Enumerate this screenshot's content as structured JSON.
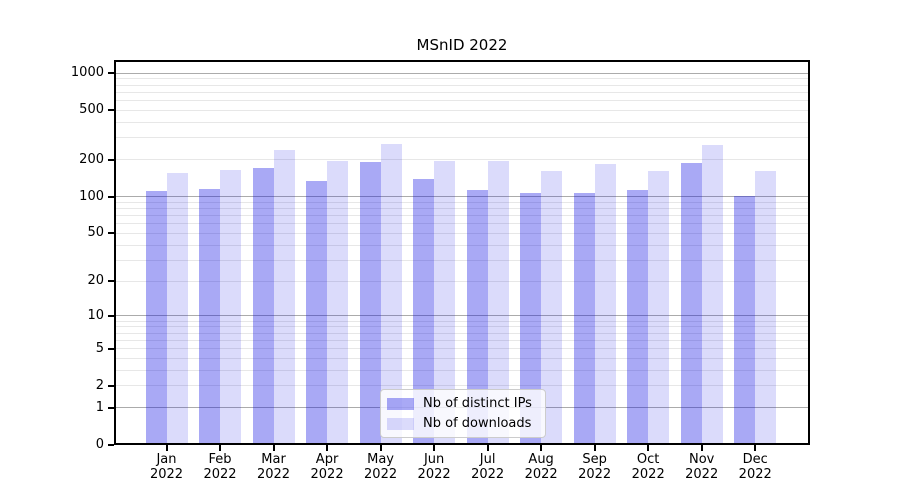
{
  "title": "MSnID 2022",
  "chart_data": {
    "type": "bar",
    "title": "MSnID 2022",
    "scale": "log1p",
    "categories": [
      "Jan 2022",
      "Feb 2022",
      "Mar 2022",
      "Apr 2022",
      "May 2022",
      "Jun 2022",
      "Jul 2022",
      "Aug 2022",
      "Sep 2022",
      "Oct 2022",
      "Nov 2022",
      "Dec 2022"
    ],
    "series": [
      {
        "name": "Nb of distinct IPs",
        "color": "rgba(10,10,225,0.35)",
        "approx_hex_on_white": "#a6a6f2",
        "values": [
          112,
          115,
          170,
          134,
          190,
          139,
          113,
          108,
          108,
          113,
          188,
          101
        ]
      },
      {
        "name": "Nb of downloads",
        "color": "rgba(10,10,225,0.145)",
        "approx_hex_on_white": "#dadaf8",
        "values": [
          157,
          166,
          238,
          194,
          270,
          194,
          194,
          162,
          183,
          162,
          264,
          162
        ]
      }
    ],
    "yticks": [
      0,
      1,
      2,
      5,
      10,
      20,
      50,
      100,
      200,
      500,
      1000
    ],
    "ylim": [
      0,
      1200
    ],
    "xlabel": "",
    "ylabel": "",
    "grid": true,
    "grid_minor_color": "#e7e7e7",
    "grid_major_color": "#ababab",
    "grid_major_values": [
      1,
      10,
      100,
      1000
    ],
    "legend_position": "lower-center"
  }
}
